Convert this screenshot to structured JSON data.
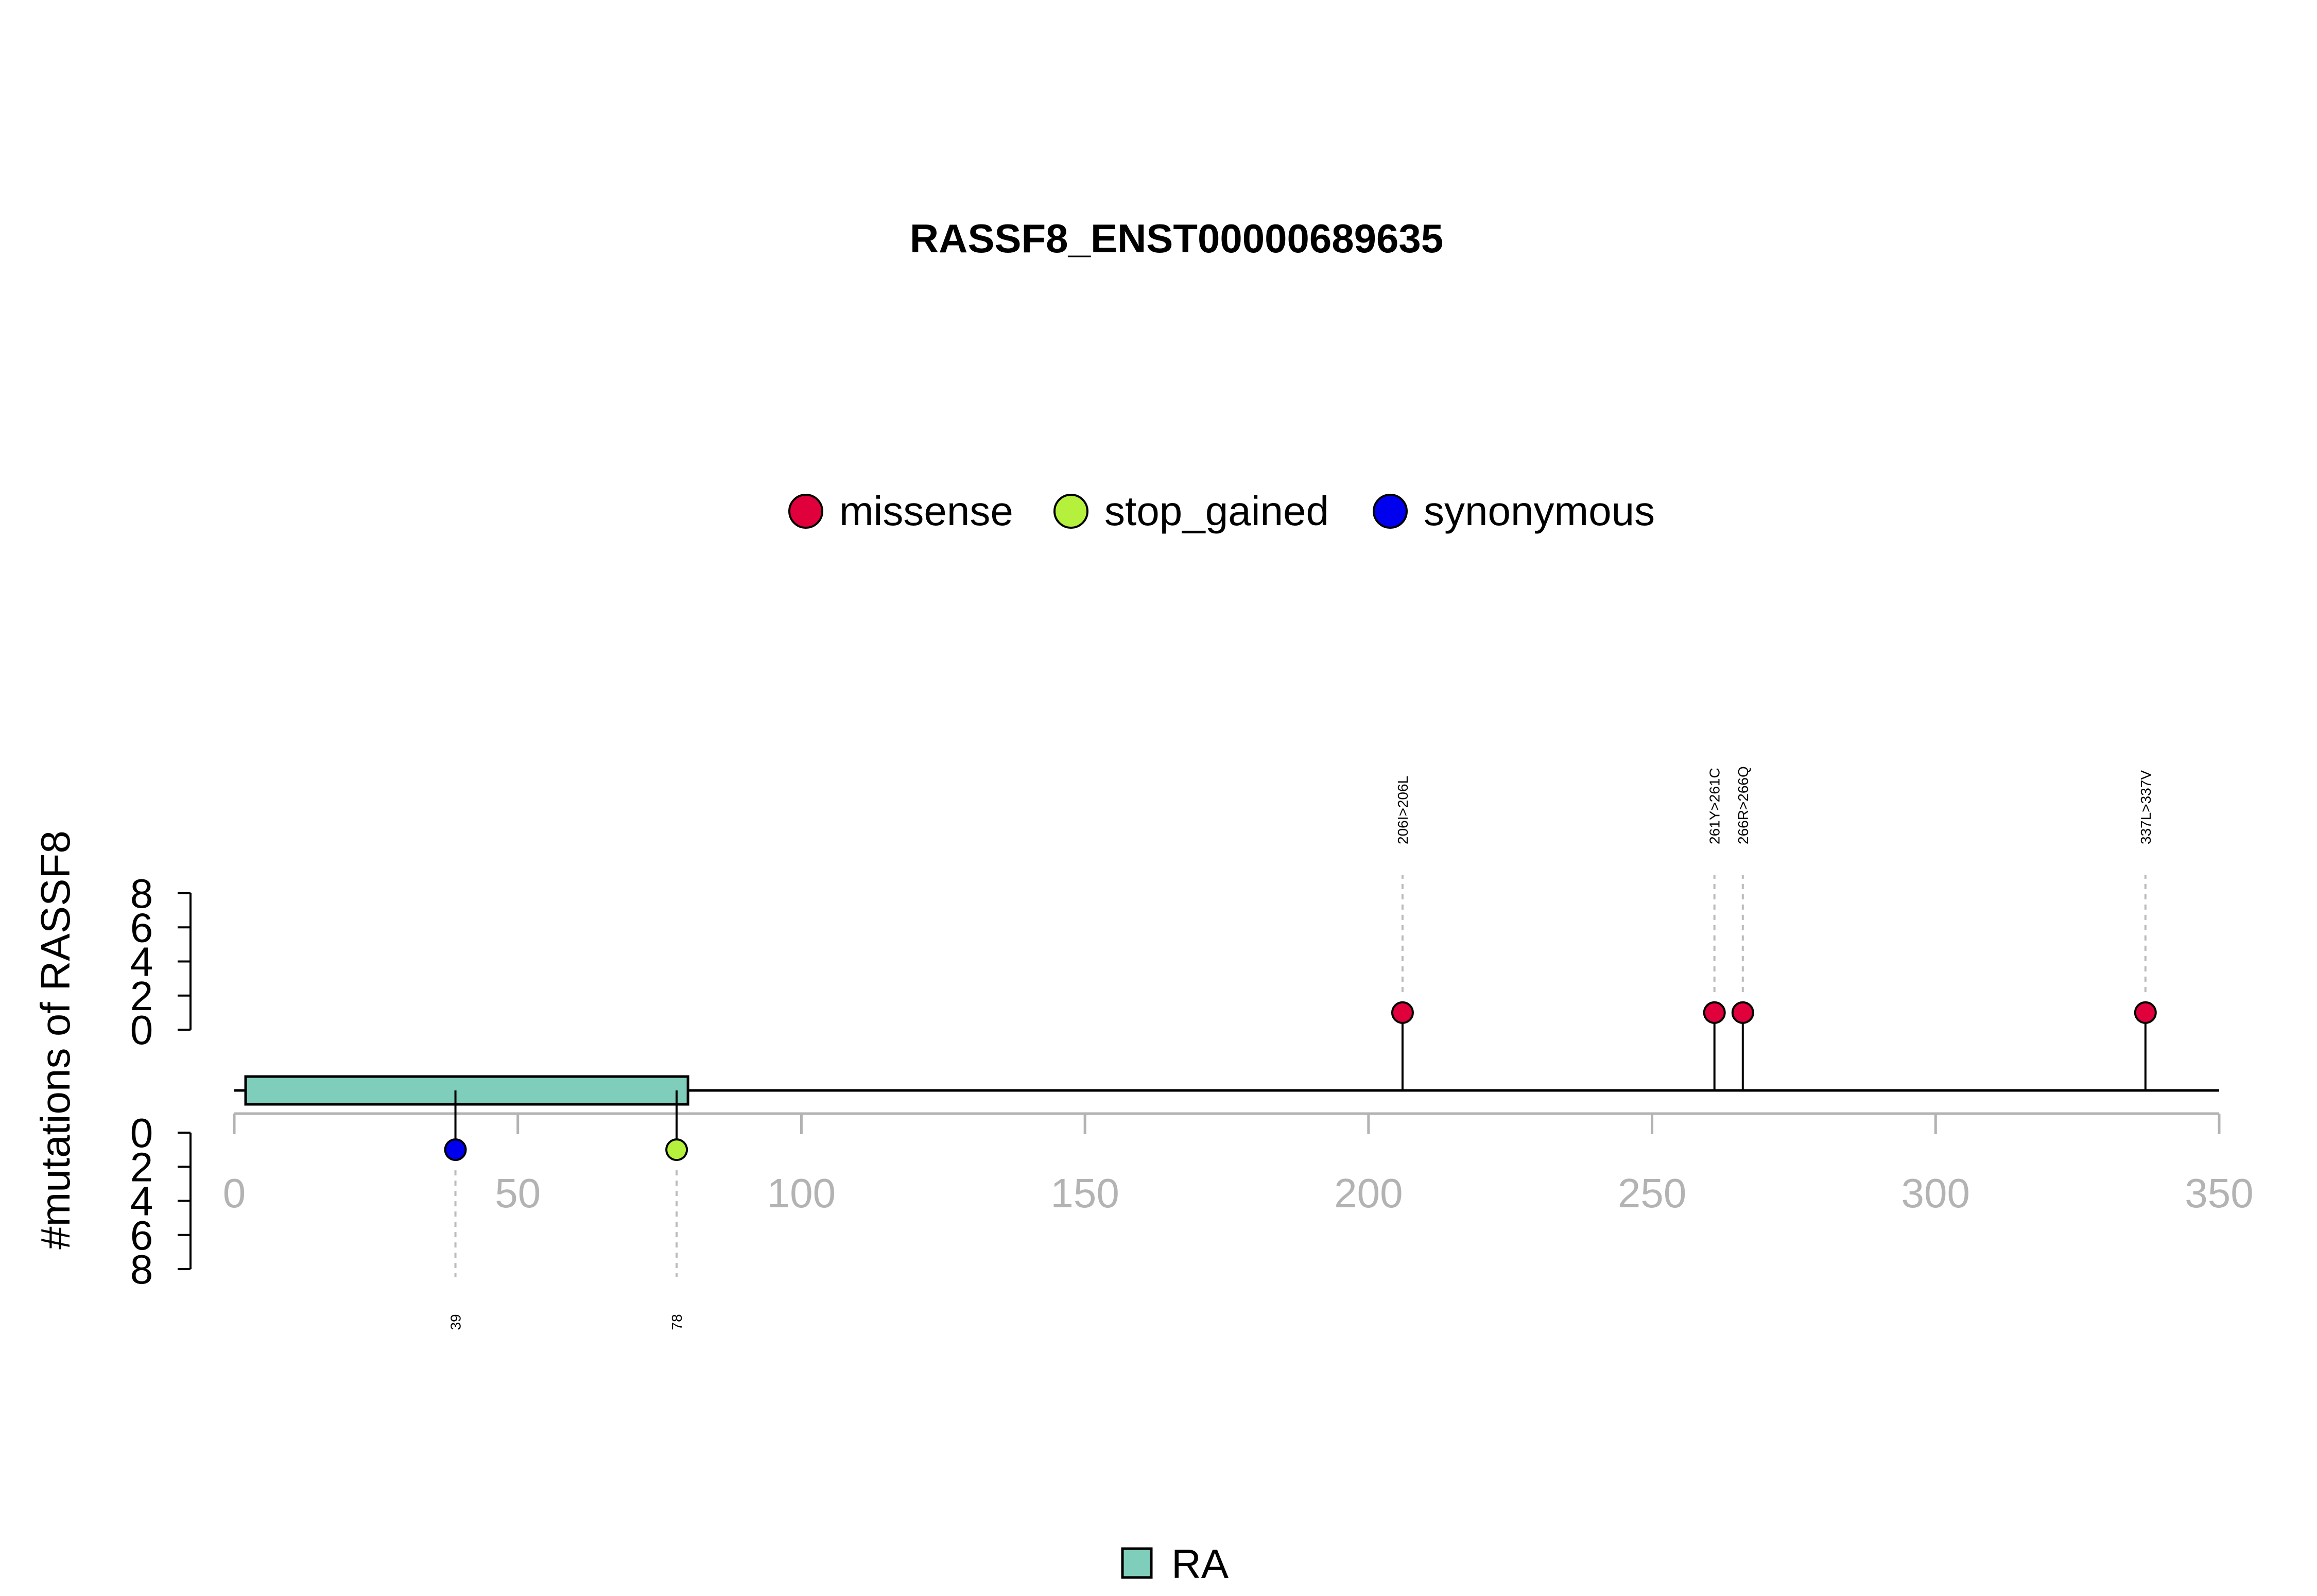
{
  "chart_data": {
    "type": "lollipop",
    "title": "RASSF8_ENST00000689635",
    "ylabel": "#mutations of RASSF8",
    "xlim": [
      0,
      350
    ],
    "x_ticks": [
      0,
      50,
      100,
      150,
      200,
      250,
      300,
      350
    ],
    "y_ticks": [
      0,
      2,
      4,
      6,
      8
    ],
    "ylim": [
      0,
      8
    ],
    "protein_length": 350,
    "legend": [
      {
        "label": "missense",
        "color": "#e0003c"
      },
      {
        "label": "stop_gained",
        "color": "#b5f03c"
      },
      {
        "label": "synonymous",
        "color": "#0000ee"
      }
    ],
    "domains": [
      {
        "name": "RA",
        "start": 2,
        "end": 80,
        "color": "#7fcdbb"
      }
    ],
    "mutations_above": [
      {
        "position": 206,
        "count": 1,
        "type": "missense",
        "label": "206I>206L"
      },
      {
        "position": 261,
        "count": 1,
        "type": "missense",
        "label": "261Y>261C"
      },
      {
        "position": 266,
        "count": 1,
        "type": "missense",
        "label": "266R>266Q"
      },
      {
        "position": 337,
        "count": 1,
        "type": "missense",
        "label": "337L>337V"
      }
    ],
    "mutations_below": [
      {
        "position": 39,
        "count": 1,
        "type": "synonymous",
        "label": "39"
      },
      {
        "position": 78,
        "count": 1,
        "type": "stop_gained",
        "label": "78"
      }
    ]
  }
}
